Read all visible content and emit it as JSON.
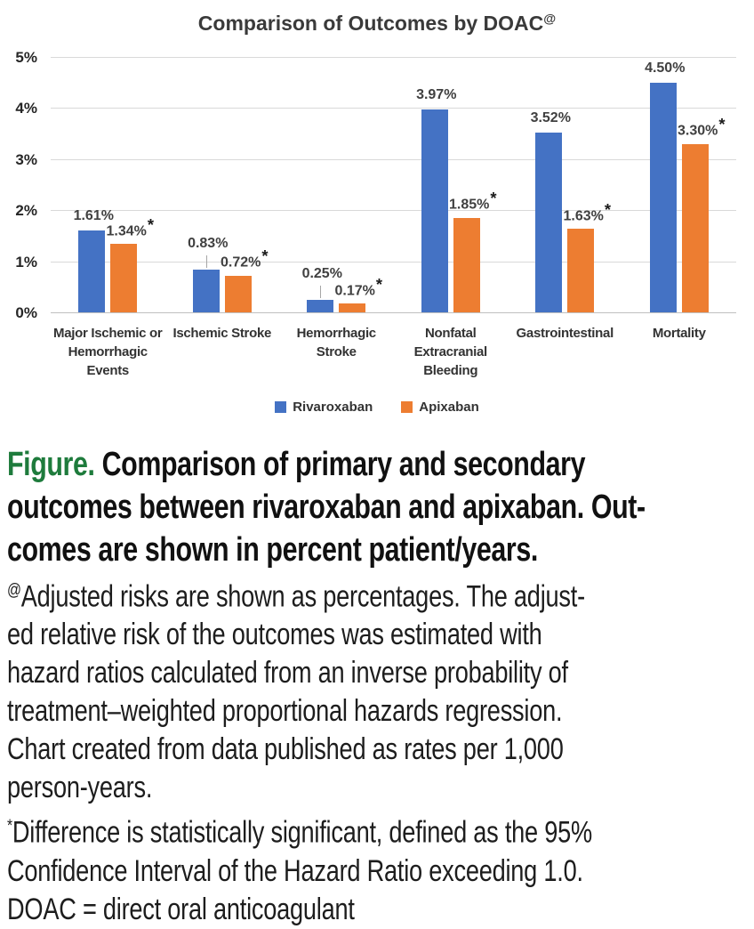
{
  "chart_data": {
    "type": "bar",
    "title": "Comparison of Outcomes by DOAC",
    "title_superscript": "@",
    "categories": [
      "Major Ischemic or Hemorrhagic Events",
      "Ischemic Stroke",
      "Hemorrhagic Stroke",
      "Nonfatal Extracranial Bleeding",
      "Gastrointestinal",
      "Mortality"
    ],
    "series": [
      {
        "name": "Rivaroxaban",
        "color": "#4472C4",
        "values": [
          1.61,
          0.83,
          0.25,
          3.97,
          3.52,
          4.5
        ],
        "labels": [
          "1.61%",
          "0.83%",
          "0.25%",
          "3.97%",
          "3.52%",
          "4.50%"
        ],
        "significant": [
          false,
          false,
          false,
          false,
          false,
          false
        ],
        "label_leader_line": [
          false,
          true,
          true,
          false,
          false,
          false
        ]
      },
      {
        "name": "Apixaban",
        "color": "#ED7D31",
        "values": [
          1.34,
          0.72,
          0.17,
          1.85,
          1.63,
          3.3
        ],
        "labels": [
          "1.34%",
          "0.72%",
          "0.17%",
          "1.85%",
          "1.63%",
          "3.30%"
        ],
        "significant": [
          true,
          true,
          true,
          true,
          true,
          true
        ],
        "label_leader_line": [
          false,
          false,
          false,
          false,
          false,
          false
        ]
      }
    ],
    "significance_marker": "*",
    "xlabel": "",
    "ylabel": "",
    "ylim": [
      0,
      5
    ],
    "yticks": [
      0,
      1,
      2,
      3,
      4,
      5
    ],
    "ytick_labels": [
      "0%",
      "1%",
      "2%",
      "3%",
      "4%",
      "5%"
    ],
    "grid": true,
    "legend_position": "bottom",
    "units": "percent patient/years"
  },
  "figure": {
    "caption_label": "Figure.",
    "caption_color": "#1e7b3c",
    "caption_text": "Comparison of primary and secondary\noutcomes between rivaroxaban and apixaban. Out-\ncomes are shown in percent patient/years."
  },
  "footnotes": [
    {
      "marker": "@",
      "text": "Adjusted risks are shown as percentages. The adjust-\ned relative risk of the outcomes was estimated with\nhazard ratios calculated from an inverse probability of\ntreatment–weighted proportional hazards regression.\nChart created from data published as rates per 1,000\nperson-years."
    },
    {
      "marker": "*",
      "text": "Difference is statistically significant, defined as the 95%\nConfidence Interval of the Hazard Ratio exceeding 1.0."
    },
    {
      "marker": "",
      "text": "DOAC = direct oral anticoagulant"
    }
  ]
}
